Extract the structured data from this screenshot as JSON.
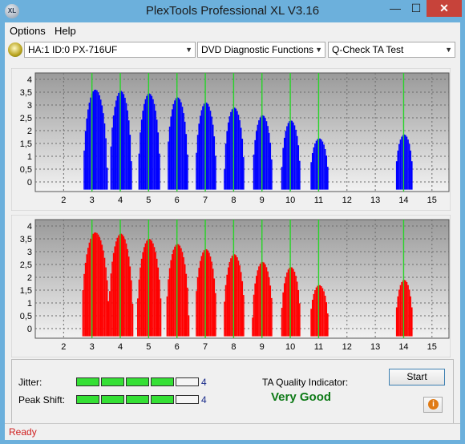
{
  "window": {
    "title": "PlexTools Professional XL V3.16",
    "icon_text": "XL",
    "minimize": "—",
    "maximize": "☐",
    "close": "✕"
  },
  "menu": [
    "Options",
    "Help"
  ],
  "toolbar": {
    "drive": "HA:1 ID:0  PX-716UF",
    "function": "DVD Diagnostic Functions",
    "test": "Q-Check TA Test"
  },
  "chart_data": [
    {
      "type": "bar",
      "name": "top",
      "color": "#0000ff",
      "x_ticks": [
        2,
        3,
        4,
        5,
        6,
        7,
        8,
        9,
        10,
        11,
        12,
        13,
        14,
        15
      ],
      "y_ticks": [
        "0",
        "0,5",
        "1",
        "1,5",
        "2",
        "2,5",
        "3",
        "3,5",
        "4"
      ],
      "ylim": [
        0,
        4
      ],
      "green_lines": [
        3,
        4,
        5,
        6,
        7,
        8,
        9,
        10,
        11,
        14
      ],
      "peaks": [
        {
          "center": 3.1,
          "height": 3.6,
          "half_width": 0.42
        },
        {
          "center": 4.0,
          "height": 3.55,
          "half_width": 0.38
        },
        {
          "center": 5.0,
          "height": 3.45,
          "half_width": 0.38
        },
        {
          "center": 6.0,
          "height": 3.3,
          "half_width": 0.37
        },
        {
          "center": 7.0,
          "height": 3.1,
          "half_width": 0.36
        },
        {
          "center": 8.0,
          "height": 2.9,
          "half_width": 0.35
        },
        {
          "center": 9.0,
          "height": 2.6,
          "half_width": 0.34
        },
        {
          "center": 10.0,
          "height": 2.4,
          "half_width": 0.33
        },
        {
          "center": 11.0,
          "height": 1.7,
          "half_width": 0.32
        },
        {
          "center": 14.0,
          "height": 1.85,
          "half_width": 0.3
        }
      ]
    },
    {
      "type": "bar",
      "name": "bottom",
      "color": "#ff0000",
      "x_ticks": [
        2,
        3,
        4,
        5,
        6,
        7,
        8,
        9,
        10,
        11,
        12,
        13,
        14,
        15
      ],
      "y_ticks": [
        "0",
        "0,5",
        "1",
        "1,5",
        "2",
        "2,5",
        "3",
        "3,5",
        "4"
      ],
      "ylim": [
        0,
        4
      ],
      "green_lines": [
        3,
        4,
        5,
        6,
        7,
        8,
        9,
        10,
        11,
        14
      ],
      "peaks": [
        {
          "center": 3.1,
          "height": 3.75,
          "half_width": 0.48
        },
        {
          "center": 4.0,
          "height": 3.7,
          "half_width": 0.43
        },
        {
          "center": 5.0,
          "height": 3.5,
          "half_width": 0.43
        },
        {
          "center": 6.0,
          "height": 3.3,
          "half_width": 0.4
        },
        {
          "center": 7.0,
          "height": 3.1,
          "half_width": 0.38
        },
        {
          "center": 8.0,
          "height": 2.9,
          "half_width": 0.37
        },
        {
          "center": 9.0,
          "height": 2.6,
          "half_width": 0.36
        },
        {
          "center": 10.0,
          "height": 2.4,
          "half_width": 0.34
        },
        {
          "center": 11.0,
          "height": 1.7,
          "half_width": 0.32
        },
        {
          "center": 14.0,
          "height": 1.9,
          "half_width": 0.3
        }
      ]
    }
  ],
  "results": {
    "jitter_label": "Jitter:",
    "jitter_value": "4",
    "jitter_level": 4,
    "peak_label": "Peak Shift:",
    "peak_value": "4",
    "peak_level": 4,
    "max_level": 5,
    "ta_label": "TA Quality Indicator:",
    "ta_value": "Very Good",
    "start": "Start",
    "info": "i"
  },
  "status": "Ready"
}
